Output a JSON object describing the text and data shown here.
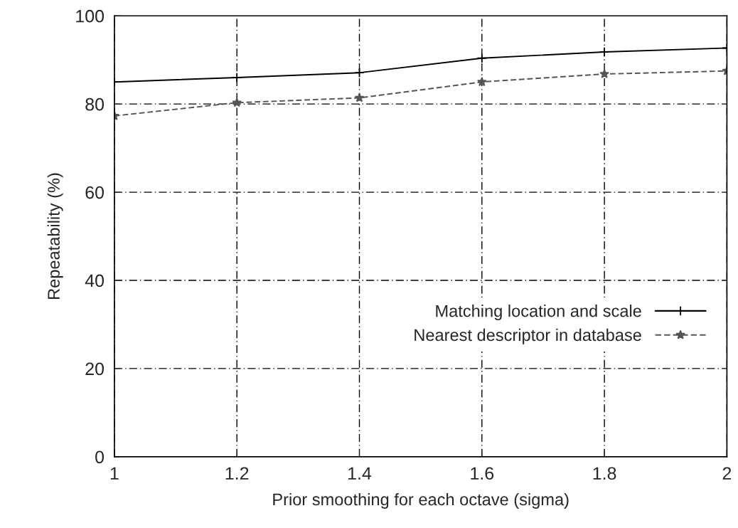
{
  "chart_data": {
    "type": "line",
    "xlabel": "Prior smoothing for each octave (sigma)",
    "ylabel": "Repeatability (%)",
    "x": [
      1,
      1.2,
      1.4,
      1.6,
      1.8,
      2
    ],
    "series": [
      {
        "name": "Matching location and scale",
        "color": "#000000",
        "line_style": "solid",
        "marker": "cross",
        "values": [
          85.0,
          86.0,
          87.1,
          90.4,
          91.8,
          92.7
        ]
      },
      {
        "name": "Nearest descriptor in database",
        "color": "#555555",
        "line_style": "dashed",
        "marker": "star",
        "values": [
          77.3,
          80.3,
          81.4,
          85.0,
          86.8,
          87.5
        ]
      }
    ],
    "xlim": [
      1,
      2
    ],
    "xticks": [
      1,
      {
        "value": 1.2,
        "label": "1.2"
      },
      {
        "value": 1.4,
        "label": "1.4"
      },
      {
        "value": 1.6,
        "label": "1.6"
      },
      {
        "value": 1.8,
        "label": "1.8"
      },
      2
    ],
    "ylim": [
      0,
      100
    ],
    "yticks": [
      0,
      20,
      40,
      60,
      80,
      100
    ],
    "grid": true,
    "legend": "right"
  }
}
